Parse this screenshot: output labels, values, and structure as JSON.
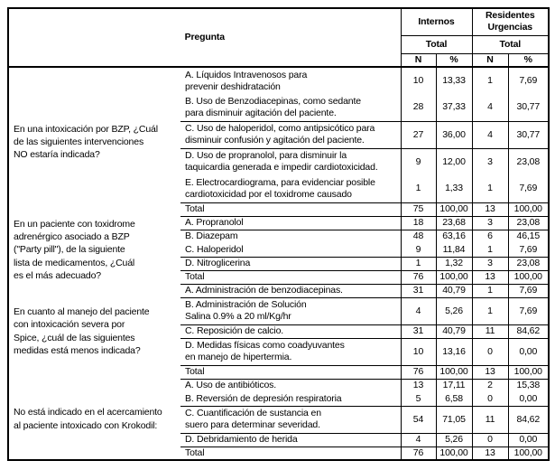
{
  "header": {
    "pregunta": "Pregunta",
    "internos": "Internos",
    "residentes": "Residentes\nUrgencias",
    "total_internos": "Total",
    "total_residentes": "Total",
    "n1": "N",
    "pct1": "%",
    "n2": "N",
    "pct2": "%"
  },
  "blocks": [
    {
      "question": "En una intoxicación por BZP, ¿Cuál\nde las siguientes intervenciones\nNO estaría indicada?",
      "rows": [
        {
          "option": "A.  Líquidos Intravenosos para\nprevenir deshidratación",
          "n1": "10",
          "p1": "13,33",
          "n2": "1",
          "p2": "7,69"
        },
        {
          "option": "B.  Uso de Benzodiacepinas, como sedante\npara disminuir agitación del paciente.",
          "n1": "28",
          "p1": "37,33",
          "n2": "4",
          "p2": "30,77"
        },
        {
          "option": "C.  Uso de haloperidol, como antipsicótico para\ndisminuir confusión y agitación del paciente.",
          "n1": "27",
          "p1": "36,00",
          "n2": "4",
          "p2": "30,77"
        },
        {
          "option": "D.  Uso de propranolol, para disminuir la\ntaquicardia generada e impedir cardiotoxicidad.",
          "n1": "9",
          "p1": "12,00",
          "n2": "3",
          "p2": "23,08"
        },
        {
          "option": "E. Electrocardiograma, para evidenciar posible\ncardiotoxicidad por el toxidrome causado",
          "n1": "1",
          "p1": "1,33",
          "n2": "1",
          "p2": "7,69"
        },
        {
          "option": "Total",
          "n1": "75",
          "p1": "100,00",
          "n2": "13",
          "p2": "100,00"
        }
      ]
    },
    {
      "question": "En un paciente con toxidrome\nadrenérgico asociado a BZP\n(\"Party pill\"), de la siguiente\nlista de medicamentos, ¿Cuál\nes el más adecuado?",
      "rows": [
        {
          "option": "A.  Propranolol",
          "n1": "18",
          "p1": "23,68",
          "n2": "3",
          "p2": "23,08"
        },
        {
          "option": "B.  Diazepam",
          "n1": "48",
          "p1": "63,16",
          "n2": "6",
          "p2": "46,15"
        },
        {
          "option": "C.  Haloperidol",
          "n1": "9",
          "p1": "11,84",
          "n2": "1",
          "p2": "7,69"
        },
        {
          "option": "D.  Nitroglicerina",
          "n1": "1",
          "p1": "1,32",
          "n2": "3",
          "p2": "23,08"
        },
        {
          "option": "Total",
          "n1": "76",
          "p1": "100,00",
          "n2": "13",
          "p2": "100,00"
        }
      ]
    },
    {
      "question": "En cuanto al manejo del paciente\ncon intoxicación severa por\nSpice, ¿cuál de las siguientes\nmedidas está menos indicada?",
      "rows": [
        {
          "option": "A.  Administración de benzodiacepinas.",
          "n1": "31",
          "p1": "40,79",
          "n2": "1",
          "p2": "7,69"
        },
        {
          "option": "B.  Administración de Solución\nSalina 0.9% a 20 ml/Kg/hr",
          "n1": "4",
          "p1": "5,26",
          "n2": "1",
          "p2": "7,69"
        },
        {
          "option": "C.  Reposición de calcio.",
          "n1": "31",
          "p1": "40,79",
          "n2": "11",
          "p2": "84,62"
        },
        {
          "option": "D.  Medidas físicas como coadyuvantes\nen manejo de hipertermia.",
          "n1": "10",
          "p1": "13,16",
          "n2": "0",
          "p2": "0,00"
        },
        {
          "option": "Total",
          "n1": "76",
          "p1": "100,00",
          "n2": "13",
          "p2": "100,00"
        }
      ]
    },
    {
      "question": "No está indicado en el acercamiento\nal paciente intoxicado con Krokodil:",
      "rows": [
        {
          "option": "A.  Uso de antibióticos.",
          "n1": "13",
          "p1": "17,11",
          "n2": "2",
          "p2": "15,38"
        },
        {
          "option": "B.  Reversión de depresión respiratoria",
          "n1": "5",
          "p1": "6,58",
          "n2": "0",
          "p2": "0,00"
        },
        {
          "option": "C.  Cuantificación de sustancia en\nsuero para determinar severidad.",
          "n1": "54",
          "p1": "71,05",
          "n2": "11",
          "p2": "84,62"
        },
        {
          "option": "D.  Debridamiento de herida",
          "n1": "4",
          "p1": "5,26",
          "n2": "0",
          "p2": "0,00"
        },
        {
          "option": "Total",
          "n1": "76",
          "p1": "100,00",
          "n2": "13",
          "p2": "100,00"
        }
      ]
    }
  ]
}
